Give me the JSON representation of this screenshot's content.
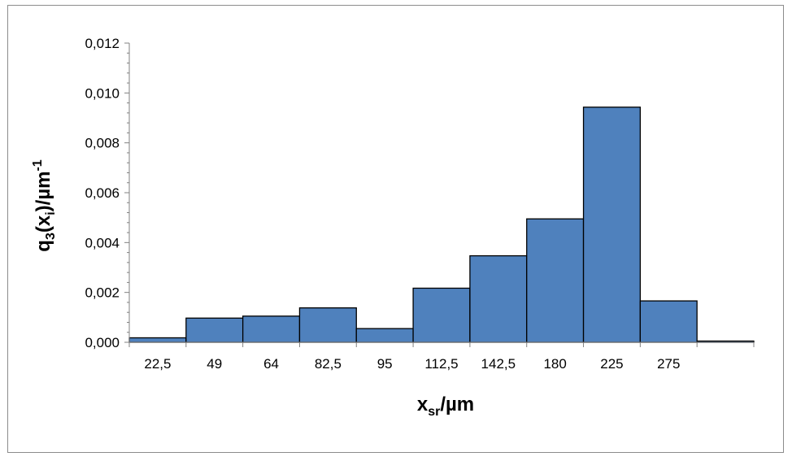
{
  "chart_data": {
    "type": "bar",
    "title": "",
    "xlabel": {
      "base": "x",
      "sub": "sr",
      "rest": "/µm"
    },
    "ylabel": {
      "a": "q",
      "sub1": "3",
      "b": "(x",
      "sub2": "i",
      "c": ")/µm",
      "sup": "-1"
    },
    "categories": [
      "22,5",
      "49",
      "64",
      "82,5",
      "95",
      "112,5",
      "142,5",
      "180",
      "225",
      "275",
      ""
    ],
    "values": [
      0.00018,
      0.00097,
      0.00105,
      0.00138,
      0.00055,
      0.00217,
      0.00347,
      0.00495,
      0.00943,
      0.00166,
      5e-05
    ],
    "ylim": [
      0,
      0.012
    ],
    "yticks": [
      "0,000",
      "0,002",
      "0,004",
      "0,006",
      "0,008",
      "0,010",
      "0,012"
    ],
    "grid": false,
    "legend": "none",
    "bar_color": "#4f81bd",
    "bar_edge_color": "#000000"
  }
}
